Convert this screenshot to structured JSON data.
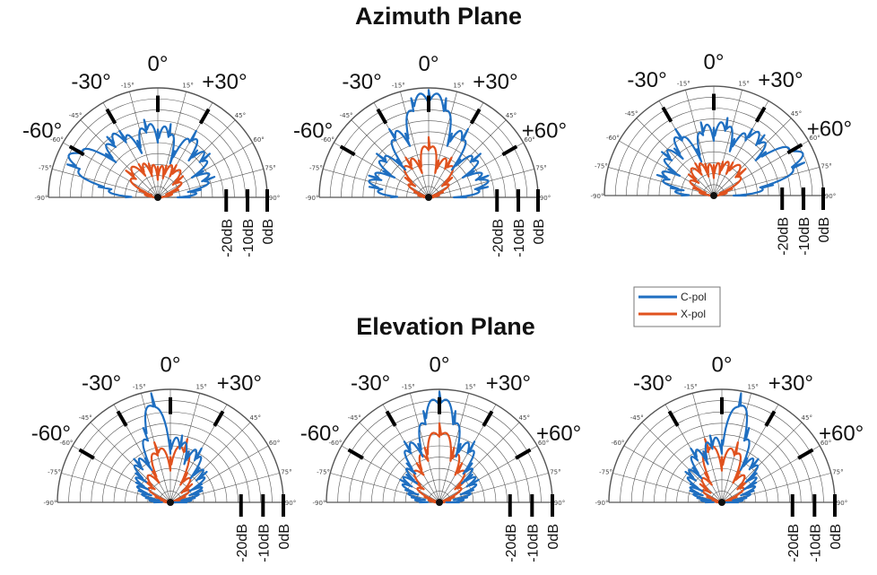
{
  "titles": {
    "azimuth": "Azimuth Plane",
    "elevation": "Elevation Plane"
  },
  "legend": {
    "cpol": "C-pol",
    "xpol": "X-pol"
  },
  "colors": {
    "cpol": "#1f6fc1",
    "xpol": "#e0521e",
    "grid": "#555555",
    "marker": "#000000"
  },
  "chart_data": [
    {
      "type": "line",
      "polar": true,
      "plane": "Azimuth Plane",
      "theta_ticks": [
        "-90°",
        "-75°",
        "-60°",
        "-45°",
        "-15°",
        "15°",
        "45°",
        "60°",
        "75°",
        "90°"
      ],
      "r_labels": [
        "-20dB",
        "-10dB",
        "0dB"
      ],
      "direction_labels": [
        "-60°",
        "-30°",
        "0°",
        "+30°"
      ],
      "series": [
        {
          "name": "C-pol",
          "theta": [
            -90,
            -80,
            -70,
            -60,
            -50,
            -40,
            -30,
            -20,
            -10,
            0,
            10,
            20,
            30,
            40,
            50,
            60,
            70,
            80,
            90
          ],
          "r": [
            0.3,
            0.55,
            0.88,
            0.92,
            0.62,
            0.72,
            0.7,
            0.55,
            0.72,
            0.62,
            0.68,
            0.45,
            0.7,
            0.56,
            0.62,
            0.48,
            0.55,
            0.4,
            0.3
          ]
        },
        {
          "name": "X-pol",
          "theta": [
            -90,
            -70,
            -50,
            -30,
            -15,
            0,
            15,
            30,
            50,
            70,
            90
          ],
          "r": [
            0.05,
            0.18,
            0.38,
            0.35,
            0.32,
            0.28,
            0.3,
            0.34,
            0.3,
            0.2,
            0.05
          ]
        }
      ]
    },
    {
      "type": "line",
      "polar": true,
      "plane": "Azimuth Plane",
      "theta_ticks": [
        "-90°",
        "-75°",
        "-60°",
        "-45°",
        "-15°",
        "15°",
        "45°",
        "60°",
        "75°",
        "90°"
      ],
      "r_labels": [
        "-20dB",
        "-10dB",
        "0dB"
      ],
      "direction_labels": [
        "-60°",
        "-30°",
        "0°",
        "+30°",
        "+60°"
      ],
      "series": [
        {
          "name": "C-pol",
          "theta": [
            -90,
            -80,
            -70,
            -60,
            -50,
            -40,
            -30,
            -20,
            -10,
            0,
            10,
            20,
            30,
            40,
            50,
            60,
            70,
            80,
            90
          ],
          "r": [
            0.35,
            0.55,
            0.58,
            0.48,
            0.62,
            0.45,
            0.72,
            0.62,
            0.92,
            0.98,
            0.92,
            0.62,
            0.72,
            0.45,
            0.62,
            0.48,
            0.58,
            0.55,
            0.35
          ]
        },
        {
          "name": "X-pol",
          "theta": [
            -90,
            -70,
            -50,
            -30,
            -15,
            0,
            15,
            30,
            50,
            70,
            90
          ],
          "r": [
            0.05,
            0.14,
            0.28,
            0.42,
            0.35,
            0.55,
            0.35,
            0.42,
            0.28,
            0.14,
            0.05
          ]
        }
      ]
    },
    {
      "type": "line",
      "polar": true,
      "plane": "Azimuth Plane",
      "theta_ticks": [
        "-90°",
        "-75°",
        "-60°",
        "-45°",
        "-15°",
        "15°",
        "45°",
        "60°",
        "75°",
        "90°"
      ],
      "r_labels": [
        "-20dB",
        "-10dB",
        "0dB"
      ],
      "direction_labels": [
        "-30°",
        "0°",
        "+30°",
        "+60°"
      ],
      "series": [
        {
          "name": "C-pol",
          "theta": [
            -90,
            -80,
            -70,
            -60,
            -50,
            -40,
            -30,
            -20,
            -10,
            0,
            10,
            20,
            30,
            40,
            50,
            60,
            70,
            80,
            90
          ],
          "r": [
            0.3,
            0.4,
            0.55,
            0.48,
            0.62,
            0.56,
            0.7,
            0.45,
            0.68,
            0.62,
            0.72,
            0.55,
            0.7,
            0.72,
            0.62,
            0.92,
            0.88,
            0.55,
            0.3
          ]
        },
        {
          "name": "X-pol",
          "theta": [
            -90,
            -70,
            -50,
            -30,
            -15,
            0,
            15,
            30,
            50,
            70,
            90
          ],
          "r": [
            0.05,
            0.2,
            0.3,
            0.34,
            0.3,
            0.28,
            0.32,
            0.35,
            0.38,
            0.18,
            0.05
          ]
        }
      ]
    },
    {
      "type": "line",
      "polar": true,
      "plane": "Elevation Plane",
      "theta_ticks": [
        "-90°",
        "-75°",
        "-60°",
        "-45°",
        "-15°",
        "15°",
        "45°",
        "60°",
        "75°",
        "90°"
      ],
      "r_labels": [
        "-20dB",
        "-10dB",
        "0dB"
      ],
      "direction_labels": [
        "-60°",
        "-30°",
        "0°",
        "+30°"
      ],
      "series": [
        {
          "name": "C-pol",
          "theta": [
            -90,
            -80,
            -70,
            -60,
            -50,
            -40,
            -30,
            -20,
            -10,
            0,
            10,
            20,
            30,
            40,
            50,
            60,
            70,
            80,
            90
          ],
          "r": [
            0.15,
            0.22,
            0.3,
            0.35,
            0.4,
            0.5,
            0.45,
            0.7,
            0.98,
            0.55,
            0.6,
            0.48,
            0.55,
            0.4,
            0.42,
            0.32,
            0.3,
            0.22,
            0.15
          ]
        },
        {
          "name": "X-pol",
          "theta": [
            -90,
            -70,
            -50,
            -30,
            -15,
            0,
            15,
            30,
            50,
            70,
            90
          ],
          "r": [
            0.05,
            0.14,
            0.3,
            0.32,
            0.55,
            0.4,
            0.58,
            0.3,
            0.25,
            0.14,
            0.05
          ]
        }
      ]
    },
    {
      "type": "line",
      "polar": true,
      "plane": "Elevation Plane",
      "theta_ticks": [
        "-90°",
        "-75°",
        "-60°",
        "-45°",
        "-15°",
        "15°",
        "45°",
        "60°",
        "75°",
        "90°"
      ],
      "r_labels": [
        "-20dB",
        "-10dB",
        "0dB"
      ],
      "direction_labels": [
        "-60°",
        "-30°",
        "0°",
        "+30°",
        "+60°"
      ],
      "series": [
        {
          "name": "C-pol",
          "theta": [
            -90,
            -80,
            -70,
            -60,
            -50,
            -40,
            -30,
            -20,
            -10,
            0,
            10,
            20,
            30,
            40,
            50,
            60,
            70,
            80,
            90
          ],
          "r": [
            0.18,
            0.25,
            0.32,
            0.4,
            0.38,
            0.45,
            0.62,
            0.55,
            0.82,
            0.98,
            0.82,
            0.55,
            0.62,
            0.45,
            0.38,
            0.4,
            0.32,
            0.25,
            0.18
          ]
        },
        {
          "name": "X-pol",
          "theta": [
            -90,
            -70,
            -50,
            -30,
            -15,
            0,
            15,
            30,
            50,
            70,
            90
          ],
          "r": [
            0.05,
            0.14,
            0.3,
            0.4,
            0.5,
            0.7,
            0.5,
            0.4,
            0.3,
            0.14,
            0.05
          ]
        }
      ]
    },
    {
      "type": "line",
      "polar": true,
      "plane": "Elevation Plane",
      "theta_ticks": [
        "-90°",
        "-75°",
        "-60°",
        "-45°",
        "-15°",
        "15°",
        "45°",
        "60°",
        "75°",
        "90°"
      ],
      "r_labels": [
        "-20dB",
        "-10dB",
        "0dB"
      ],
      "direction_labels": [
        "-30°",
        "0°",
        "+30°",
        "+60°"
      ],
      "series": [
        {
          "name": "C-pol",
          "theta": [
            -90,
            -80,
            -70,
            -60,
            -50,
            -40,
            -30,
            -20,
            -10,
            0,
            10,
            20,
            30,
            40,
            50,
            60,
            70,
            80,
            90
          ],
          "r": [
            0.15,
            0.22,
            0.3,
            0.32,
            0.42,
            0.4,
            0.55,
            0.48,
            0.6,
            0.55,
            0.98,
            0.7,
            0.45,
            0.5,
            0.4,
            0.35,
            0.3,
            0.22,
            0.15
          ]
        },
        {
          "name": "X-pol",
          "theta": [
            -90,
            -70,
            -50,
            -30,
            -15,
            0,
            15,
            30,
            50,
            70,
            90
          ],
          "r": [
            0.05,
            0.14,
            0.25,
            0.3,
            0.58,
            0.4,
            0.55,
            0.32,
            0.3,
            0.14,
            0.05
          ]
        }
      ]
    }
  ]
}
